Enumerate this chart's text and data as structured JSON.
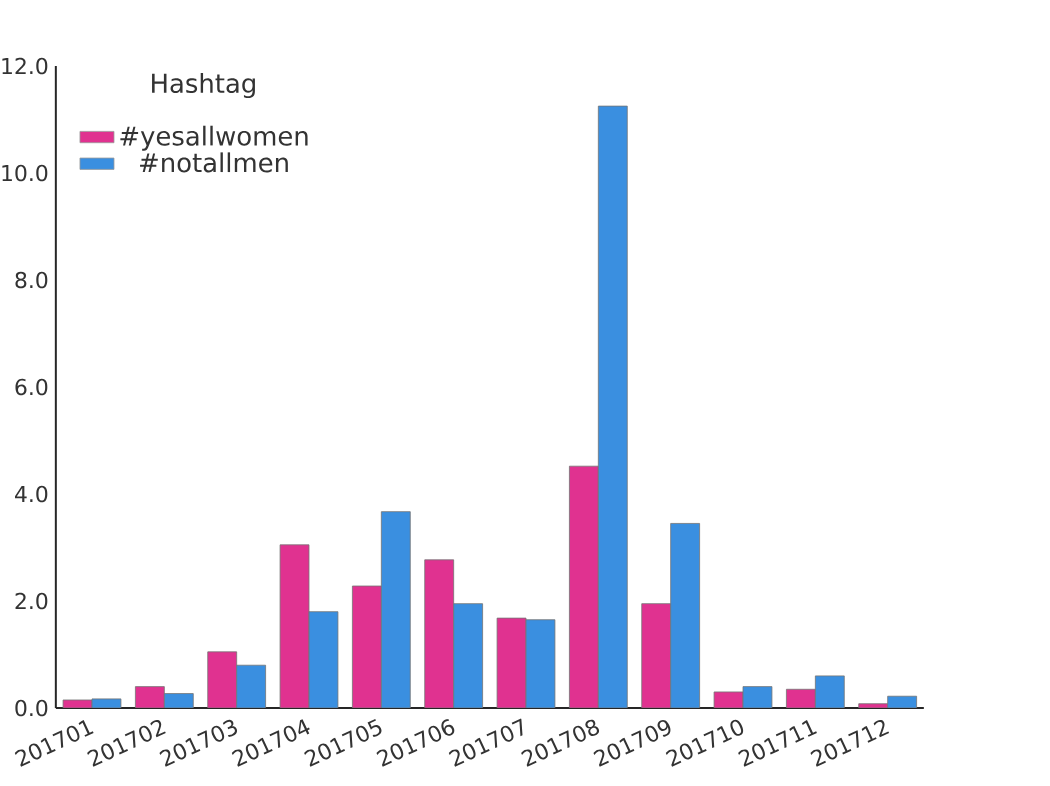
{
  "chart_data": {
    "type": "bar",
    "categories": [
      "201701",
      "201702",
      "201703",
      "201704",
      "201705",
      "201706",
      "201707",
      "201708",
      "201709",
      "201710",
      "201711",
      "201712"
    ],
    "series": [
      {
        "name": "#yesallwomen",
        "color": "#e03290",
        "values": [
          0.15,
          0.4,
          1.05,
          3.05,
          2.28,
          2.77,
          1.68,
          4.52,
          1.95,
          0.3,
          0.35,
          0.08
        ]
      },
      {
        "name": "#notallmen",
        "color": "#3a8fe0",
        "values": [
          0.17,
          0.27,
          0.8,
          1.8,
          3.67,
          1.95,
          1.65,
          11.25,
          3.45,
          0.4,
          0.6,
          0.22
        ]
      }
    ],
    "legend_title": "Hashtag",
    "legend": "top left",
    "ylim": [
      0,
      12
    ],
    "yticks": [
      {
        "value": 0,
        "label": "0.0"
      },
      {
        "value": 2,
        "label": "2.0"
      },
      {
        "value": 4,
        "label": "4.0"
      },
      {
        "value": 6,
        "label": "6.0"
      },
      {
        "value": 8,
        "label": "8.0"
      },
      {
        "value": 10,
        "label": "10.0"
      },
      {
        "value": 12,
        "label": "12.0"
      }
    ],
    "grid": false
  }
}
